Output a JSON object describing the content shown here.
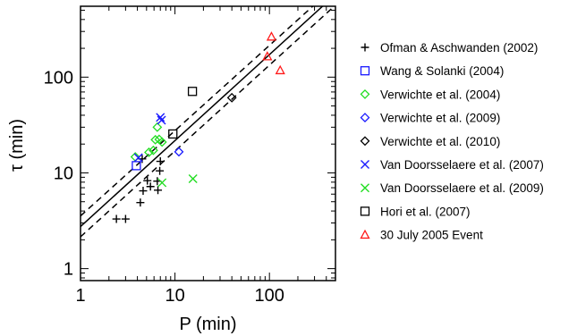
{
  "chart_data": {
    "type": "scatter",
    "xlabel": "P (min)",
    "ylabel": "τ (min)",
    "xscale": "log",
    "yscale": "log",
    "xlim": [
      1,
      500
    ],
    "ylim": [
      0.75,
      550
    ],
    "x_ticks": [
      {
        "value": 1,
        "label": "1"
      },
      {
        "value": 10,
        "label": "10"
      },
      {
        "value": 100,
        "label": "100"
      }
    ],
    "y_ticks": [
      {
        "value": 1,
        "label": "1"
      },
      {
        "value": 10,
        "label": "10"
      },
      {
        "value": 100,
        "label": "100"
      }
    ],
    "legend_position": "right, outside plot",
    "series": [
      {
        "name": "Ofman & Aschwanden (2002)",
        "marker": "plus",
        "color": "#000000",
        "points": [
          [
            2.4,
            3.3
          ],
          [
            3.0,
            3.3
          ],
          [
            4.3,
            4.9
          ],
          [
            4.6,
            6.5
          ],
          [
            5.5,
            7.2
          ],
          [
            5.1,
            8.3
          ],
          [
            6.6,
            6.6
          ],
          [
            6.5,
            8.2
          ],
          [
            6.9,
            10.5
          ],
          [
            7.0,
            13.2
          ],
          [
            4.5,
            14.0
          ]
        ]
      },
      {
        "name": "Wang & Solanki (2004)",
        "marker": "square",
        "color": "#1a1aff",
        "points": [
          [
            3.9,
            11.9
          ]
        ]
      },
      {
        "name": "Verwichte et al. (2004)",
        "marker": "diamond",
        "color": "#22dd22",
        "points": [
          [
            3.8,
            14.7
          ],
          [
            5.3,
            16.4
          ],
          [
            5.9,
            17.2
          ],
          [
            6.2,
            22.2
          ],
          [
            6.8,
            22.4
          ],
          [
            7.3,
            21.0
          ],
          [
            6.5,
            30.0
          ]
        ]
      },
      {
        "name": "Verwichte et al. (2009)",
        "marker": "diamond",
        "color": "#1a1aff",
        "points": [
          [
            11.0,
            16.6
          ]
        ]
      },
      {
        "name": "Verwichte et al. (2010)",
        "marker": "diamond",
        "color": "#000000",
        "points": [
          [
            40.0,
            61.0
          ]
        ]
      },
      {
        "name": "Van Doorsselaere et al. (2007)",
        "marker": "x",
        "color": "#1a1aff",
        "points": [
          [
            4.1,
            14.4
          ],
          [
            7.0,
            38.0
          ],
          [
            7.2,
            35.5
          ]
        ]
      },
      {
        "name": "Van Doorsselaere et al. (2009)",
        "marker": "x",
        "color": "#22dd22",
        "points": [
          [
            7.3,
            7.9
          ],
          [
            15.5,
            8.7
          ]
        ]
      },
      {
        "name": "Hori et al. (2007)",
        "marker": "square",
        "color": "#000000",
        "points": [
          [
            9.5,
            25.5
          ],
          [
            15.3,
            71.0
          ]
        ]
      },
      {
        "name": "30 July 2005 Event",
        "marker": "triangle",
        "color": "#ff1a1a",
        "points": [
          [
            105.0,
            265.0
          ],
          [
            95.0,
            165.0
          ],
          [
            130.0,
            118.0
          ]
        ]
      }
    ],
    "fit_lines": [
      {
        "style": "solid",
        "color": "#000000",
        "points": [
          [
            1,
            2.75
          ],
          [
            500,
            730
          ]
        ]
      },
      {
        "style": "dashed",
        "color": "#000000",
        "points": [
          [
            1,
            3.55
          ],
          [
            500,
            900
          ]
        ]
      },
      {
        "style": "dashed",
        "color": "#000000",
        "points": [
          [
            1,
            2.15
          ],
          [
            500,
            565
          ]
        ]
      }
    ]
  }
}
